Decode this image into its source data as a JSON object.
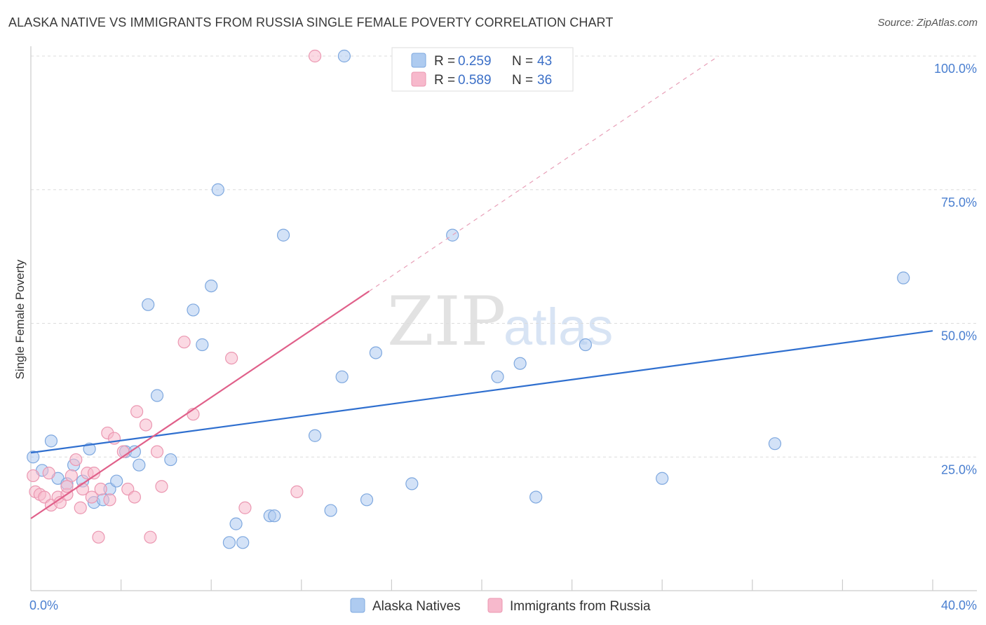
{
  "header": {
    "title": "ALASKA NATIVE VS IMMIGRANTS FROM RUSSIA SINGLE FEMALE POVERTY CORRELATION CHART",
    "source": "Source: ZipAtlas.com"
  },
  "watermark": {
    "zip": "ZIP",
    "atlas": "atlas"
  },
  "legend_top": {
    "r_label": "R =",
    "n_label": "N =",
    "rows": [
      {
        "r": "0.259",
        "n": "43"
      },
      {
        "r": "0.589",
        "n": "36"
      }
    ]
  },
  "legend_bottom": {
    "items": [
      "Alaska Natives",
      "Immigrants from Russia"
    ]
  },
  "colors": {
    "blue_fill": "#aecbf0",
    "blue_stroke": "#7ea8df",
    "blue_line": "#2f6fcf",
    "pink_fill": "#f7b9cc",
    "pink_stroke": "#eb97b1",
    "pink_line": "#e0608a"
  },
  "chart_data": {
    "type": "scatter",
    "title": "ALASKA NATIVE VS IMMIGRANTS FROM RUSSIA SINGLE FEMALE POVERTY CORRELATION CHART",
    "xlabel": "",
    "ylabel": "Single Female Poverty",
    "xlim": [
      0,
      40
    ],
    "ylim": [
      0,
      100
    ],
    "x_tick_labels": [
      "0.0%",
      "40.0%"
    ],
    "y_ticks": [
      25,
      50,
      75,
      100
    ],
    "y_tick_labels": [
      "25.0%",
      "50.0%",
      "75.0%",
      "100.0%"
    ],
    "grid": true,
    "series": [
      {
        "name": "Alaska Natives",
        "r": 0.259,
        "n": 43,
        "trend": {
          "x": [
            0,
            40
          ],
          "y": [
            25.8,
            48.6
          ]
        },
        "points": [
          [
            0.1,
            25.0
          ],
          [
            0.5,
            22.5
          ],
          [
            0.9,
            28.0
          ],
          [
            1.2,
            21.0
          ],
          [
            1.6,
            20.0
          ],
          [
            1.9,
            23.5
          ],
          [
            2.3,
            20.5
          ],
          [
            2.6,
            26.5
          ],
          [
            2.8,
            16.5
          ],
          [
            3.2,
            17.0
          ],
          [
            3.5,
            19.0
          ],
          [
            3.8,
            20.5
          ],
          [
            4.2,
            26.0
          ],
          [
            4.6,
            26.0
          ],
          [
            4.8,
            23.5
          ],
          [
            5.2,
            53.5
          ],
          [
            5.6,
            36.5
          ],
          [
            6.2,
            24.5
          ],
          [
            7.2,
            52.5
          ],
          [
            7.6,
            46.0
          ],
          [
            8.0,
            57.0
          ],
          [
            8.3,
            75.0
          ],
          [
            8.8,
            9.0
          ],
          [
            9.1,
            12.5
          ],
          [
            9.4,
            9.0
          ],
          [
            10.6,
            14.0
          ],
          [
            10.8,
            14.0
          ],
          [
            11.2,
            66.5
          ],
          [
            12.6,
            29.0
          ],
          [
            13.3,
            15.0
          ],
          [
            13.8,
            40.0
          ],
          [
            13.9,
            100.0
          ],
          [
            14.9,
            17.0
          ],
          [
            15.3,
            44.5
          ],
          [
            16.9,
            20.0
          ],
          [
            18.7,
            66.5
          ],
          [
            20.7,
            40.0
          ],
          [
            21.7,
            42.5
          ],
          [
            22.4,
            17.5
          ],
          [
            24.6,
            46.0
          ],
          [
            28.0,
            21.0
          ],
          [
            33.0,
            27.5
          ],
          [
            38.7,
            58.5
          ]
        ]
      },
      {
        "name": "Immigrants from Russia",
        "r": 0.589,
        "n": 36,
        "trend": {
          "x": [
            0,
            15
          ],
          "y": [
            13.5,
            56.0
          ]
        },
        "trend_extension": {
          "x": [
            15,
            30.5
          ],
          "y": [
            56.0,
            100.0
          ]
        },
        "points": [
          [
            0.1,
            21.5
          ],
          [
            0.2,
            18.5
          ],
          [
            0.4,
            18.0
          ],
          [
            0.6,
            17.5
          ],
          [
            0.8,
            22.0
          ],
          [
            0.9,
            16.0
          ],
          [
            1.2,
            17.5
          ],
          [
            1.3,
            16.5
          ],
          [
            1.6,
            18.0
          ],
          [
            1.8,
            21.5
          ],
          [
            2.0,
            24.5
          ],
          [
            2.2,
            15.5
          ],
          [
            2.3,
            19.0
          ],
          [
            2.5,
            22.0
          ],
          [
            2.7,
            17.5
          ],
          [
            2.8,
            22.0
          ],
          [
            3.0,
            10.0
          ],
          [
            3.1,
            19.0
          ],
          [
            3.4,
            29.5
          ],
          [
            3.5,
            17.0
          ],
          [
            3.7,
            28.5
          ],
          [
            4.1,
            26.0
          ],
          [
            4.3,
            19.0
          ],
          [
            4.6,
            17.5
          ],
          [
            4.7,
            33.5
          ],
          [
            5.1,
            31.0
          ],
          [
            5.3,
            10.0
          ],
          [
            5.6,
            26.0
          ],
          [
            5.8,
            19.5
          ],
          [
            6.8,
            46.5
          ],
          [
            7.2,
            33.0
          ],
          [
            8.9,
            43.5
          ],
          [
            9.5,
            15.5
          ],
          [
            11.8,
            18.5
          ],
          [
            12.6,
            100.0
          ],
          [
            1.6,
            19.5
          ]
        ]
      }
    ]
  }
}
